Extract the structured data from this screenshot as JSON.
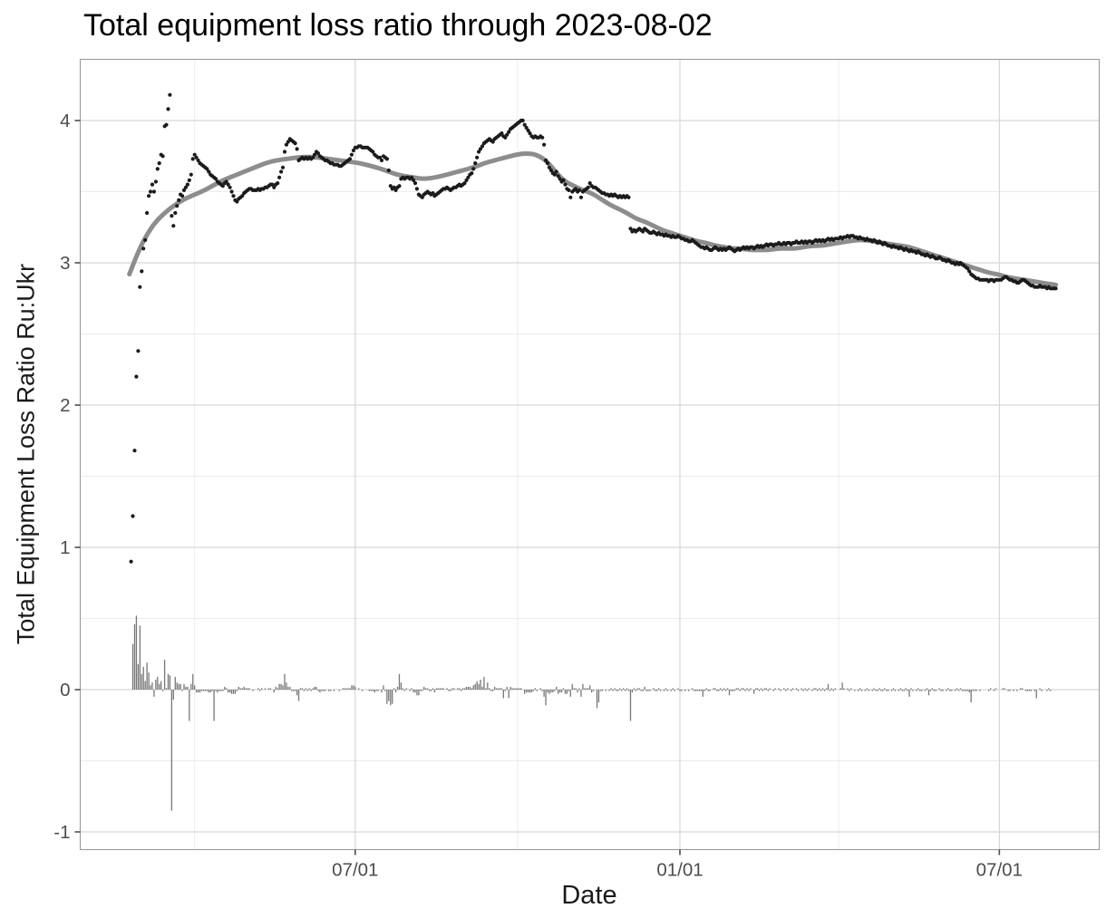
{
  "chart_data": {
    "type": "scatter",
    "title": "Total equipment loss ratio through 2023-08-02",
    "xlabel": "Date",
    "ylabel": "Total Equipment Loss Ratio Ru:Ukr",
    "x_start_date": "2022-02-24",
    "x_end_date": "2023-08-02",
    "x_tick_labels": [
      "07/01",
      "01/01",
      "07/01"
    ],
    "x_tick_days": [
      127,
      311,
      492
    ],
    "x_minor_days": [
      36,
      219,
      401
    ],
    "y_ticks": [
      "4",
      "3",
      "2",
      "1",
      "0",
      "-1"
    ],
    "y_tick_values": [
      4,
      3,
      2,
      1,
      0,
      -1
    ],
    "y_minor_values": [
      3.5,
      2.5,
      1.5,
      0.5,
      -0.5
    ],
    "ylim": [
      -1.12,
      4.43
    ],
    "grid": true,
    "legend": "none",
    "series": [
      {
        "name": "daily-ratio-points",
        "style": "point",
        "color": "#1b1b1b"
      },
      {
        "name": "loess-smooth",
        "style": "thick-line",
        "color": "#8d8d8d"
      },
      {
        "name": "daily-change-bars",
        "style": "bar",
        "color": "#777777",
        "note": "bar height = day-over-day change of ratio"
      }
    ],
    "ratio_daily_values_from_start_date": [
      0.9,
      1.22,
      1.68,
      2.2,
      2.38,
      2.83,
      2.94,
      3.1,
      3.16,
      3.35,
      3.47,
      3.5,
      3.55,
      3.5,
      3.57,
      3.66,
      3.7,
      3.76,
      3.75,
      3.96,
      3.97,
      4.08,
      4.18,
      3.33,
      3.26,
      3.35,
      3.4,
      3.44,
      3.48,
      3.47,
      3.51,
      3.53,
      3.55,
      3.58,
      3.62,
      3.73,
      3.76,
      3.74,
      3.72,
      3.7,
      3.69,
      3.68,
      3.67,
      3.66,
      3.64,
      3.62,
      3.61,
      3.6,
      3.59,
      3.57,
      3.56,
      3.55,
      3.54,
      3.56,
      3.57,
      3.55,
      3.53,
      3.5,
      3.47,
      3.44,
      3.43,
      3.45,
      3.46,
      3.47,
      3.49,
      3.5,
      3.51,
      3.52,
      3.52,
      3.51,
      3.51,
      3.51,
      3.52,
      3.51,
      3.52,
      3.52,
      3.53,
      3.53,
      3.54,
      3.55,
      3.55,
      3.53,
      3.55,
      3.56,
      3.6,
      3.64,
      3.67,
      3.78,
      3.83,
      3.85,
      3.87,
      3.86,
      3.85,
      3.84,
      3.8,
      3.72,
      3.73,
      3.74,
      3.73,
      3.74,
      3.73,
      3.74,
      3.73,
      3.74,
      3.76,
      3.78,
      3.77,
      3.75,
      3.74,
      3.73,
      3.72,
      3.72,
      3.71,
      3.7,
      3.7,
      3.69,
      3.69,
      3.69,
      3.68,
      3.68,
      3.69,
      3.7,
      3.71,
      3.72,
      3.73,
      3.76,
      3.79,
      3.81,
      3.81,
      3.82,
      3.82,
      3.81,
      3.81,
      3.81,
      3.81,
      3.8,
      3.79,
      3.78,
      3.76,
      3.75,
      3.74,
      3.74,
      3.72,
      3.75,
      3.74,
      3.73,
      3.65,
      3.54,
      3.52,
      3.53,
      3.51,
      3.53,
      3.54,
      3.59,
      3.6,
      3.59,
      3.6,
      3.6,
      3.59,
      3.6,
      3.58,
      3.56,
      3.52,
      3.48,
      3.47,
      3.46,
      3.48,
      3.49,
      3.5,
      3.49,
      3.48,
      3.49,
      3.47,
      3.48,
      3.49,
      3.5,
      3.51,
      3.52,
      3.52,
      3.53,
      3.52,
      3.51,
      3.52,
      3.53,
      3.53,
      3.54,
      3.55,
      3.54,
      3.55,
      3.56,
      3.58,
      3.6,
      3.62,
      3.63,
      3.66,
      3.7,
      3.74,
      3.78,
      3.8,
      3.82,
      3.84,
      3.85,
      3.86,
      3.87,
      3.86,
      3.85,
      3.87,
      3.88,
      3.89,
      3.9,
      3.91,
      3.89,
      3.88,
      3.9,
      3.92,
      3.94,
      3.95,
      3.96,
      3.97,
      3.98,
      3.99,
      4.0,
      4.0,
      3.97,
      3.95,
      3.93,
      3.91,
      3.89,
      3.88,
      3.89,
      3.88,
      3.88,
      3.89,
      3.88,
      3.83,
      3.72,
      3.7,
      3.67,
      3.65,
      3.63,
      3.62,
      3.64,
      3.61,
      3.59,
      3.57,
      3.58,
      3.55,
      3.52,
      3.51,
      3.46,
      3.5,
      3.51,
      3.52,
      3.5,
      3.51,
      3.46,
      3.5,
      3.51,
      3.52,
      3.53,
      3.56,
      3.54,
      3.53,
      3.53,
      3.52,
      3.51,
      3.5,
      3.49,
      3.49,
      3.48,
      3.48,
      3.47,
      3.48,
      3.47,
      3.48,
      3.47,
      3.46,
      3.47,
      3.46,
      3.47,
      3.46,
      3.47,
      3.46,
      3.24,
      3.22,
      3.23,
      3.22,
      3.23,
      3.24,
      3.23,
      3.22,
      3.24,
      3.23,
      3.22,
      3.21,
      3.21,
      3.22,
      3.21,
      3.2,
      3.21,
      3.2,
      3.2,
      3.19,
      3.2,
      3.19,
      3.19,
      3.18,
      3.19,
      3.18,
      3.18,
      3.19,
      3.18,
      3.17,
      3.17,
      3.16,
      3.16,
      3.15,
      3.15,
      3.16,
      3.15,
      3.14,
      3.13,
      3.12,
      3.11,
      3.11,
      3.1,
      3.11,
      3.1,
      3.09,
      3.09,
      3.1,
      3.11,
      3.1,
      3.09,
      3.1,
      3.09,
      3.1,
      3.09,
      3.1,
      3.11,
      3.1,
      3.09,
      3.08,
      3.09,
      3.1,
      3.09,
      3.1,
      3.11,
      3.1,
      3.11,
      3.1,
      3.11,
      3.11,
      3.1,
      3.11,
      3.12,
      3.11,
      3.12,
      3.11,
      3.12,
      3.13,
      3.12,
      3.13,
      3.13,
      3.12,
      3.13,
      3.13,
      3.14,
      3.13,
      3.13,
      3.14,
      3.13,
      3.14,
      3.14,
      3.13,
      3.14,
      3.14,
      3.15,
      3.14,
      3.14,
      3.15,
      3.14,
      3.15,
      3.14,
      3.15,
      3.15,
      3.14,
      3.15,
      3.16,
      3.15,
      3.16,
      3.15,
      3.16,
      3.15,
      3.16,
      3.17,
      3.16,
      3.17,
      3.16,
      3.17,
      3.17,
      3.17,
      3.18,
      3.17,
      3.18,
      3.18,
      3.19,
      3.18,
      3.19,
      3.19,
      3.18,
      3.18,
      3.17,
      3.18,
      3.17,
      3.17,
      3.16,
      3.17,
      3.16,
      3.16,
      3.15,
      3.16,
      3.15,
      3.14,
      3.15,
      3.14,
      3.13,
      3.14,
      3.13,
      3.12,
      3.12,
      3.11,
      3.12,
      3.11,
      3.11,
      3.1,
      3.11,
      3.1,
      3.09,
      3.1,
      3.09,
      3.08,
      3.09,
      3.08,
      3.08,
      3.07,
      3.08,
      3.07,
      3.06,
      3.06,
      3.05,
      3.06,
      3.05,
      3.04,
      3.05,
      3.04,
      3.03,
      3.03,
      3.04,
      3.03,
      3.02,
      3.02,
      3.01,
      3.02,
      3.01,
      3.0,
      3.0,
      2.99,
      3.0,
      2.99,
      3.0,
      2.99,
      2.98,
      2.97,
      2.96,
      2.94,
      2.92,
      2.91,
      2.9,
      2.89,
      2.89,
      2.88,
      2.88,
      2.88,
      2.88,
      2.88,
      2.87,
      2.88,
      2.88,
      2.87,
      2.88,
      2.88,
      2.88,
      2.88,
      2.89,
      2.9,
      2.9,
      2.89,
      2.88,
      2.88,
      2.87,
      2.87,
      2.86,
      2.86,
      2.87,
      2.88,
      2.88,
      2.87,
      2.86,
      2.85,
      2.84,
      2.84,
      2.83,
      2.83,
      2.83,
      2.84,
      2.83,
      2.83,
      2.83,
      2.82,
      2.83,
      2.82,
      2.82,
      2.82,
      2.82
    ],
    "smooth_anchors_day_value": [
      [
        -1,
        2.92
      ],
      [
        4,
        3.08
      ],
      [
        9,
        3.2
      ],
      [
        14,
        3.29
      ],
      [
        19,
        3.35
      ],
      [
        24,
        3.4
      ],
      [
        29,
        3.44
      ],
      [
        34,
        3.47
      ],
      [
        40,
        3.5
      ],
      [
        46,
        3.54
      ],
      [
        52,
        3.58
      ],
      [
        58,
        3.61
      ],
      [
        64,
        3.64
      ],
      [
        70,
        3.67
      ],
      [
        76,
        3.7
      ],
      [
        82,
        3.72
      ],
      [
        88,
        3.73
      ],
      [
        94,
        3.74
      ],
      [
        100,
        3.745
      ],
      [
        106,
        3.74
      ],
      [
        112,
        3.73
      ],
      [
        118,
        3.72
      ],
      [
        124,
        3.71
      ],
      [
        130,
        3.7
      ],
      [
        136,
        3.68
      ],
      [
        142,
        3.66
      ],
      [
        148,
        3.63
      ],
      [
        154,
        3.61
      ],
      [
        160,
        3.6
      ],
      [
        165,
        3.59
      ],
      [
        170,
        3.595
      ],
      [
        176,
        3.61
      ],
      [
        182,
        3.63
      ],
      [
        188,
        3.65
      ],
      [
        194,
        3.67
      ],
      [
        200,
        3.7
      ],
      [
        206,
        3.72
      ],
      [
        212,
        3.74
      ],
      [
        218,
        3.76
      ],
      [
        224,
        3.77
      ],
      [
        230,
        3.76
      ],
      [
        236,
        3.71
      ],
      [
        241,
        3.63
      ],
      [
        246,
        3.57
      ],
      [
        251,
        3.54
      ],
      [
        256,
        3.51
      ],
      [
        261,
        3.49
      ],
      [
        266,
        3.45
      ],
      [
        271,
        3.41
      ],
      [
        276,
        3.38
      ],
      [
        281,
        3.35
      ],
      [
        286,
        3.31
      ],
      [
        291,
        3.29
      ],
      [
        296,
        3.26
      ],
      [
        301,
        3.23
      ],
      [
        306,
        3.21
      ],
      [
        311,
        3.19
      ],
      [
        316,
        3.17
      ],
      [
        321,
        3.15
      ],
      [
        326,
        3.14
      ],
      [
        331,
        3.12
      ],
      [
        336,
        3.11
      ],
      [
        341,
        3.1
      ],
      [
        346,
        3.1
      ],
      [
        351,
        3.09
      ],
      [
        356,
        3.09
      ],
      [
        361,
        3.09
      ],
      [
        366,
        3.1
      ],
      [
        371,
        3.1
      ],
      [
        376,
        3.1
      ],
      [
        381,
        3.11
      ],
      [
        386,
        3.12
      ],
      [
        391,
        3.12
      ],
      [
        396,
        3.13
      ],
      [
        401,
        3.14
      ],
      [
        406,
        3.15
      ],
      [
        411,
        3.16
      ],
      [
        416,
        3.16
      ],
      [
        421,
        3.15
      ],
      [
        426,
        3.14
      ],
      [
        431,
        3.13
      ],
      [
        436,
        3.12
      ],
      [
        441,
        3.11
      ],
      [
        446,
        3.09
      ],
      [
        451,
        3.07
      ],
      [
        456,
        3.05
      ],
      [
        461,
        3.03
      ],
      [
        466,
        3.01
      ],
      [
        471,
        2.99
      ],
      [
        476,
        2.97
      ],
      [
        481,
        2.95
      ],
      [
        486,
        2.93
      ],
      [
        491,
        2.92
      ],
      [
        496,
        2.9
      ],
      [
        501,
        2.89
      ],
      [
        506,
        2.88
      ],
      [
        511,
        2.87
      ],
      [
        516,
        2.86
      ],
      [
        521,
        2.85
      ],
      [
        524,
        2.845
      ]
    ],
    "bar_overrides_day_delta": {
      "33": -0.22,
      "47": -0.22,
      "145": -0.1,
      "148": -0.1,
      "152": 0.11,
      "196": 0.06,
      "198": 0.07,
      "200": 0.09,
      "202": 0.05,
      "211": -0.06,
      "214": -0.06,
      "264": -0.13,
      "265": -0.09,
      "324": -0.05,
      "339": -0.04,
      "353": -0.03,
      "395": 0.04,
      "403": 0.05,
      "441": -0.05,
      "452": -0.04,
      "476": -0.09,
      "513": -0.06
    }
  },
  "colors": {
    "point": "#1b1b1b",
    "smooth_line": "#8d8d8d",
    "bar": "#777777",
    "grid_major": "#d6d6d6",
    "grid_minor": "#ebebeb",
    "panel_border": "#9a9a9a",
    "tick_mark": "#4d4d4d",
    "tick_label": "#4d4d4d",
    "background": "#ffffff"
  }
}
